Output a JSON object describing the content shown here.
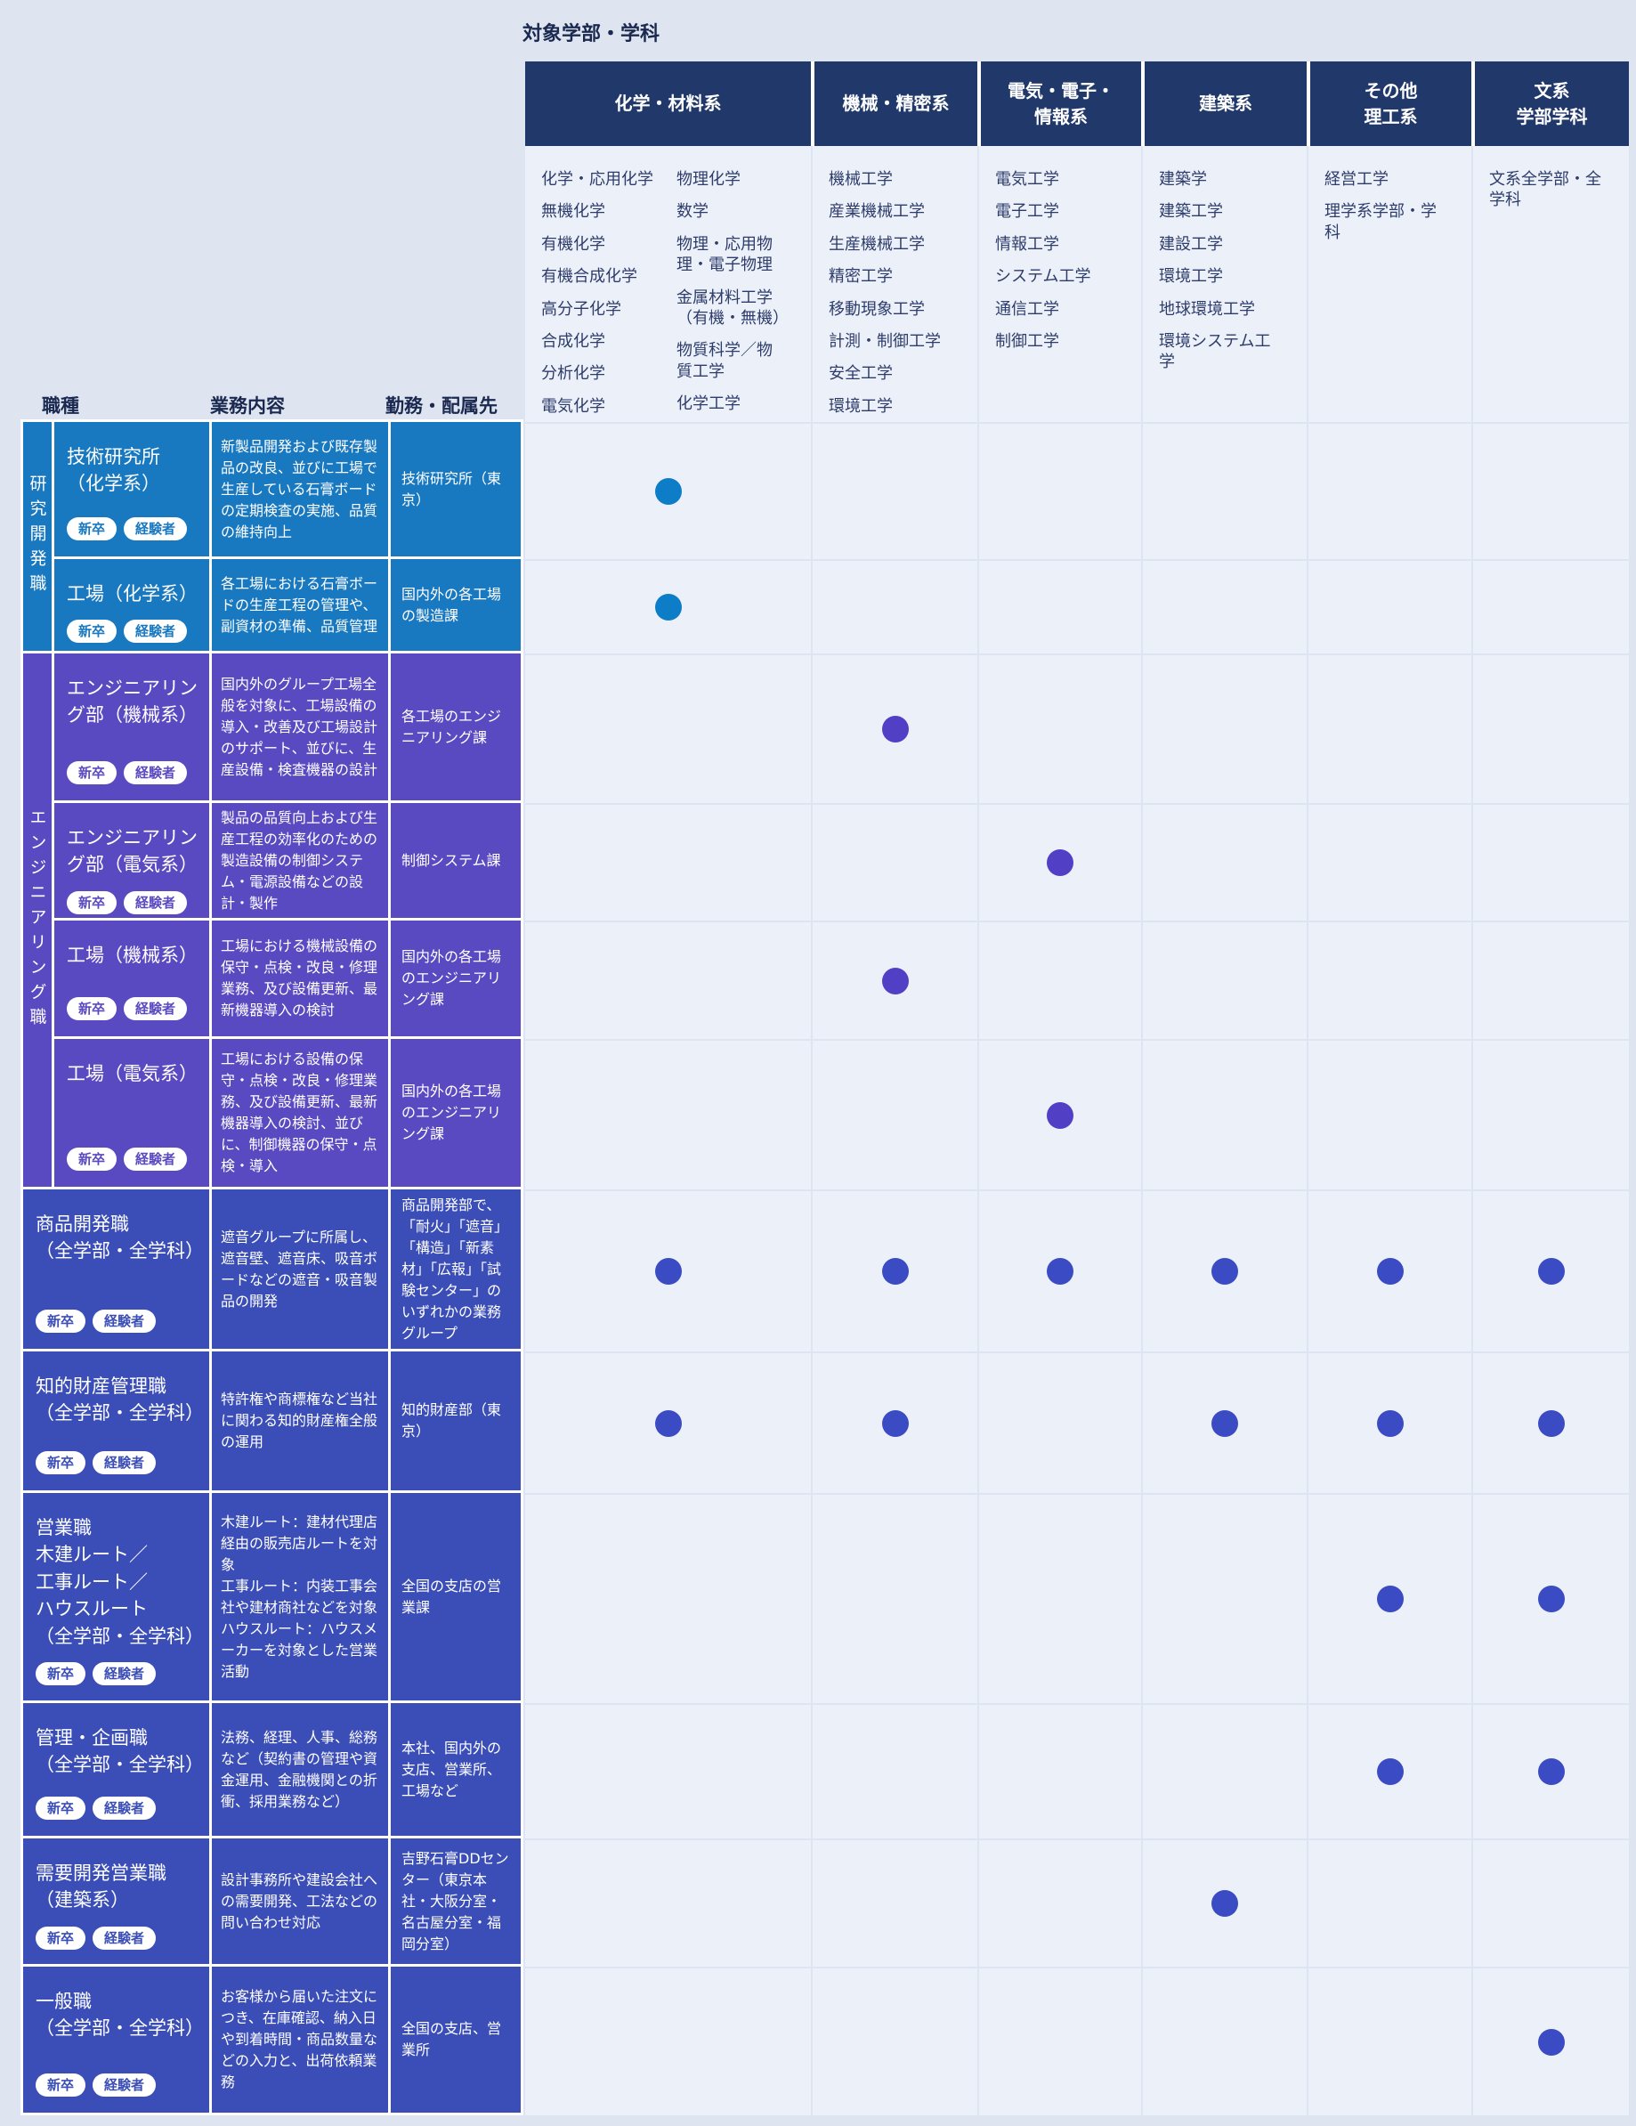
{
  "header": {
    "target_label": "対象学部・学科"
  },
  "left_headers": {
    "job": "職種",
    "duties": "業務内容",
    "location": "勤務・配属先"
  },
  "badges": {
    "new_grad": "新卒",
    "experienced": "経験者"
  },
  "colors": {
    "page_bg": "#dee5f1",
    "header_navy": "#21396a",
    "matrix_bg": "#ecf1f9",
    "grid_line": "#dde4f2",
    "group1": "#1878c0",
    "group2": "#5a4ac1",
    "general": "#3b4eb7",
    "dot_group1": "#0d7dc8",
    "dot_group2": "#5140c6",
    "dot_general": "#3a4bc4"
  },
  "columns": [
    {
      "label": "化学・材料系",
      "majors_left": [
        "化学・応用化学",
        "無機化学",
        "有機化学",
        "有機合成化学",
        "高分子化学",
        "合成化学",
        "分析化学",
        "電気化学"
      ],
      "majors_right": [
        "物理化学",
        "数学",
        "物理・応用物理・電子物理",
        "金属材料工学\n（有機・無機）",
        "物質科学／物質工学",
        "化学工学"
      ]
    },
    {
      "label": "機械・精密系",
      "majors": [
        "機械工学",
        "産業機械工学",
        "生産機械工学",
        "精密工学",
        "移動現象工学",
        "計測・制御工学",
        "安全工学",
        "環境工学"
      ]
    },
    {
      "label": "電気・電子・\n情報系",
      "majors": [
        "電気工学",
        "電子工学",
        "情報工学",
        "システム工学",
        "通信工学",
        "制御工学"
      ]
    },
    {
      "label": "建築系",
      "majors": [
        "建築学",
        "建築工学",
        "建設工学",
        "環境工学",
        "地球環境工学",
        "環境システム工学"
      ]
    },
    {
      "label": "その他\n理工系",
      "majors": [
        "経営工学",
        "理学系学部・学科"
      ]
    },
    {
      "label": "文系\n学部学科",
      "majors": [
        "文系全学部・全学科"
      ]
    }
  ],
  "groups": [
    {
      "label": "研究開発職",
      "color": "#1878c0",
      "row_start": 1,
      "row_end": 2
    },
    {
      "label": "エンジニアリング職",
      "color": "#5a4ac1",
      "row_start": 3,
      "row_end": 6
    }
  ],
  "rows": [
    {
      "title": "技術研究所\n（化学系）",
      "duties": "新製品開発および既存製品の改良、並びに工場で生産している石膏ボードの定期検査の実施、品質の維持向上",
      "location": "技術研究所（東京）",
      "color": "#1878c0",
      "dot_color": "#0d7dc8",
      "dots": [
        1,
        0,
        0,
        0,
        0,
        0
      ]
    },
    {
      "title": "工場（化学系）",
      "duties": "各工場における石膏ボードの生産工程の管理や、副資材の準備、品質管理",
      "location": "国内外の各工場の製造課",
      "color": "#1878c0",
      "dot_color": "#0d7dc8",
      "dots": [
        1,
        0,
        0,
        0,
        0,
        0
      ]
    },
    {
      "title": "エンジニアリング部（機械系）",
      "duties": "国内外のグループ工場全般を対象に、工場設備の導入・改善及び工場設計のサポート、並びに、生産設備・検査機器の設計",
      "location": "各工場のエンジニアリング課",
      "color": "#5a4ac1",
      "dot_color": "#5140c6",
      "dots": [
        0,
        1,
        0,
        0,
        0,
        0
      ]
    },
    {
      "title": "エンジニアリング部（電気系）",
      "duties": "製品の品質向上および生産工程の効率化のための製造設備の制御システム・電源設備などの設計・製作",
      "location": "制御システム課",
      "color": "#5a4ac1",
      "dot_color": "#5140c6",
      "dots": [
        0,
        0,
        1,
        0,
        0,
        0
      ]
    },
    {
      "title": "工場（機械系）",
      "duties": "工場における機械設備の保守・点検・改良・修理業務、及び設備更新、最新機器導入の検討",
      "location": "国内外の各工場のエンジニアリング課",
      "color": "#5a4ac1",
      "dot_color": "#5140c6",
      "dots": [
        0,
        1,
        0,
        0,
        0,
        0
      ]
    },
    {
      "title": "工場（電気系）",
      "duties": "工場における設備の保守・点検・改良・修理業務、及び設備更新、最新機器導入の検討、並びに、制御機器の保守・点検・導入",
      "location": "国内外の各工場のエンジニアリング課",
      "color": "#5a4ac1",
      "dot_color": "#5140c6",
      "dots": [
        0,
        0,
        1,
        0,
        0,
        0
      ]
    },
    {
      "title": "商品開発職\n（全学部・全学科）",
      "duties": "遮音グループに所属し、遮音壁、遮音床、吸音ボードなどの遮音・吸音製品の開発",
      "location": "商品開発部で、「耐火」「遮音」「構造」「新素材」「広報」「試験センター」のいずれかの業務グループ",
      "color": "#3b4eb7",
      "dot_color": "#3a4bc4",
      "dots": [
        1,
        1,
        1,
        1,
        1,
        1
      ]
    },
    {
      "title": "知的財産管理職\n（全学部・全学科）",
      "duties": "特許権や商標権など当社に関わる知的財産権全般の運用",
      "location": "知的財産部（東京）",
      "color": "#3b4eb7",
      "dot_color": "#3a4bc4",
      "dots": [
        1,
        1,
        0,
        1,
        1,
        1
      ]
    },
    {
      "title": "営業職\n木建ルート／\n工事ルート／\nハウスルート\n（全学部・全学科）",
      "duties": "木建ルート：建材代理店経由の販売店ルートを対象\n工事ルート：内装工事会社や建材商社などを対象\nハウスルート：ハウスメーカーを対象とした営業活動",
      "location": "全国の支店の営業課",
      "color": "#3b4eb7",
      "dot_color": "#3a4bc4",
      "dots": [
        0,
        0,
        0,
        0,
        1,
        1
      ]
    },
    {
      "title": "管理・企画職\n（全学部・全学科）",
      "duties": "法務、経理、人事、総務など（契約書の管理や資金運用、金融機関との折衝、採用業務など）",
      "location": "本社、国内外の支店、営業所、工場など",
      "color": "#3b4eb7",
      "dot_color": "#3a4bc4",
      "dots": [
        0,
        0,
        0,
        0,
        1,
        1
      ]
    },
    {
      "title": "需要開発営業職\n（建築系）",
      "duties": "設計事務所や建設会社への需要開発、工法などの問い合わせ対応",
      "location": "吉野石膏DDセンター（東京本社・大阪分室・名古屋分室・福岡分室）",
      "color": "#3b4eb7",
      "dot_color": "#3a4bc4",
      "dots": [
        0,
        0,
        0,
        1,
        0,
        0
      ]
    },
    {
      "title": "一般職\n（全学部・全学科）",
      "duties": "お客様から届いた注文につき、在庫確認、納入日や到着時間・商品数量などの入力と、出荷依頼業務",
      "location": "全国の支店、営業所",
      "color": "#3b4eb7",
      "dot_color": "#3a4bc4",
      "dots": [
        0,
        0,
        0,
        0,
        0,
        1
      ]
    }
  ]
}
